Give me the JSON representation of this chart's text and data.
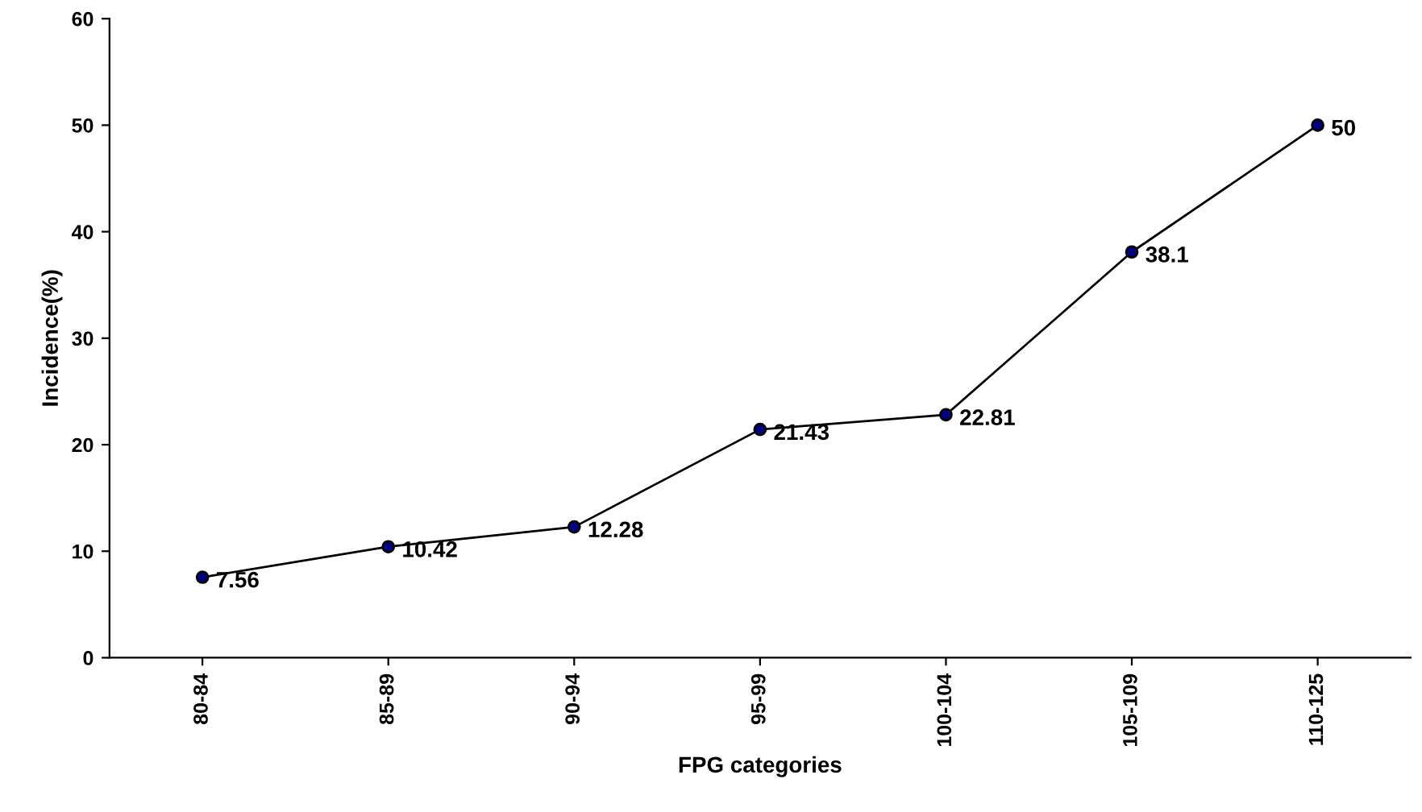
{
  "chart_data": {
    "type": "line",
    "xlabel": "FPG categories",
    "ylabel": "Incidence(%)",
    "categories": [
      "80-84",
      "85-89",
      "90-94",
      "95-99",
      "100-104",
      "105-109",
      "110-125"
    ],
    "series": [
      {
        "color": "#000080",
        "values": [
          7.56,
          10.42,
          12.28,
          21.43,
          22.81,
          38.1,
          50
        ]
      }
    ],
    "ylim": [
      0,
      60
    ],
    "yticks": [
      0,
      10,
      20,
      30,
      40,
      50,
      60
    ],
    "grid": false,
    "legend": false,
    "marker": "circle",
    "line_style": "solid",
    "data_labels": true
  }
}
